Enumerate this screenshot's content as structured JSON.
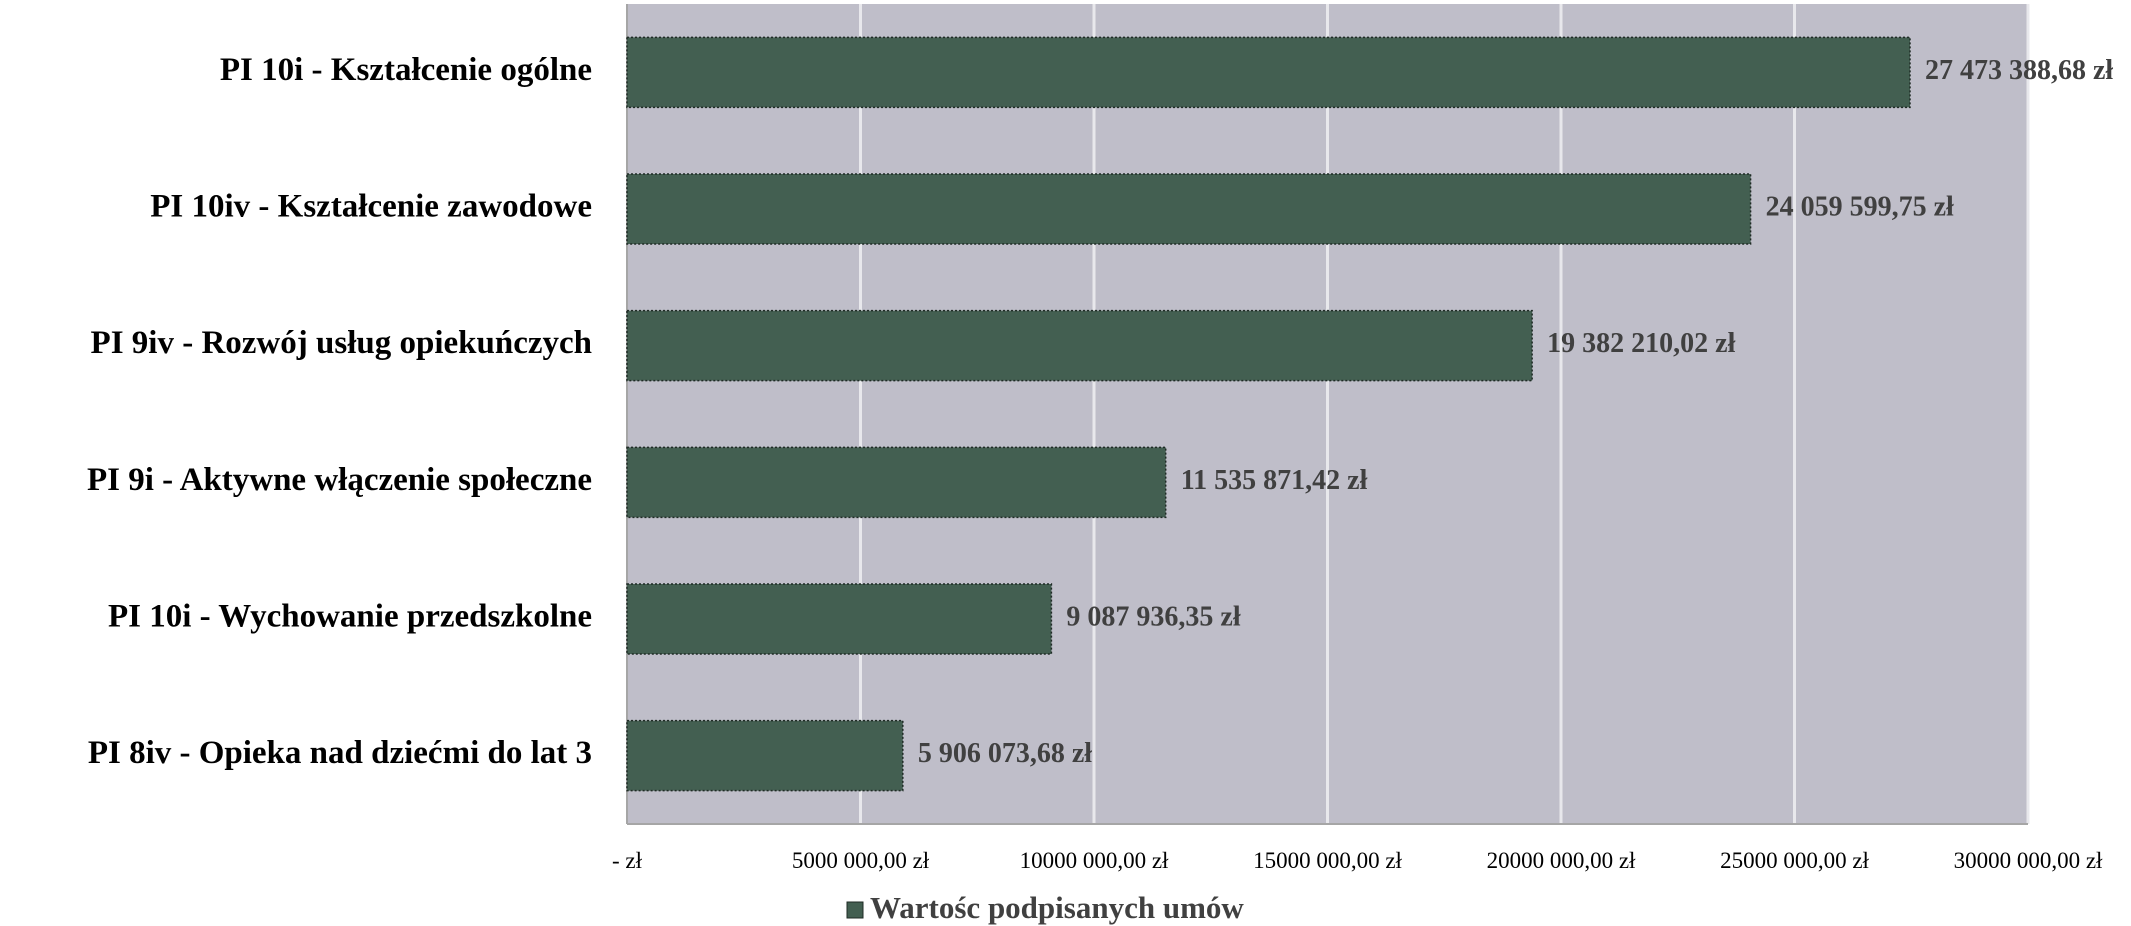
{
  "chart_data": {
    "type": "bar",
    "orientation": "horizontal",
    "categories": [
      "PI 10i - Kształcenie ogólne",
      "PI 10iv - Kształcenie zawodowe",
      "PI 9iv - Rozwój usług opiekuńczych",
      "PI 9i - Aktywne włączenie społeczne",
      "PI 10i - Wychowanie przedszkolne",
      "PI 8iv - Opieka nad dziećmi do lat 3"
    ],
    "series": [
      {
        "name": "Wartośc podpisanych umów",
        "values": [
          27473388.68,
          24059599.75,
          19382210.02,
          11535871.42,
          9087936.35,
          5906073.68
        ],
        "data_labels": [
          "27 473 388,68 zł",
          "24 059 599,75 zł",
          "19 382 210,02 zł",
          "11 535 871,42 zł",
          "9 087 936,35 zł",
          "5 906 073,68 zł"
        ],
        "color": "#435f51"
      }
    ],
    "xlim": [
      0,
      30000000
    ],
    "x_ticks": [
      0,
      5000000,
      10000000,
      15000000,
      20000000,
      25000000,
      30000000
    ],
    "x_tick_labels": [
      "-   zł",
      "5000 000,00 zł",
      "10000 000,00 zł",
      "15000 000,00 zł",
      "20000 000,00 zł",
      "25000 000,00 zł",
      "30000 000,00 zł"
    ],
    "grid": true,
    "legend_position": "bottom",
    "plot_background": "#bfbec9",
    "grid_color": "#e8e8ec"
  }
}
